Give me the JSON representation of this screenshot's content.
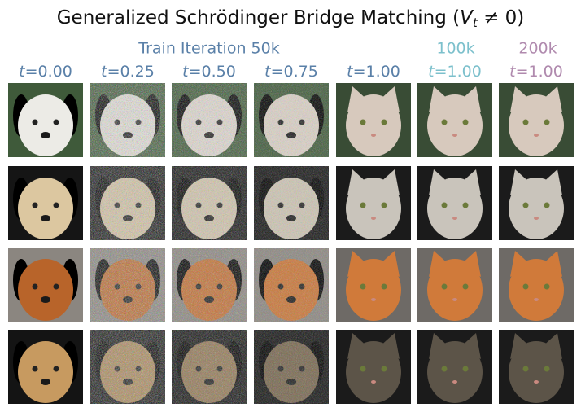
{
  "header": {
    "title_prefix": "Generalized Schrödinger Bridge Matching (",
    "title_var": "V",
    "title_sub": "t",
    "title_suffix": " ≠ 0)"
  },
  "groups": [
    {
      "label": "Train Iteration 50k",
      "color": "#5a80a8"
    },
    {
      "label": "100k",
      "color": "#7cc0cc"
    },
    {
      "label": "200k",
      "color": "#b08aae"
    }
  ],
  "columns": [
    {
      "var": "t",
      "text": "=0.00",
      "group": 0
    },
    {
      "var": "t",
      "text": "=0.25",
      "group": 0
    },
    {
      "var": "t",
      "text": "=0.50",
      "group": 0
    },
    {
      "var": "t",
      "text": "=0.75",
      "group": 0
    },
    {
      "var": "t",
      "text": "=1.00",
      "group": 0
    },
    {
      "var": "t",
      "text": "=1.00",
      "group": 1
    },
    {
      "var": "t",
      "text": "=1.00",
      "group": 2
    }
  ]
}
